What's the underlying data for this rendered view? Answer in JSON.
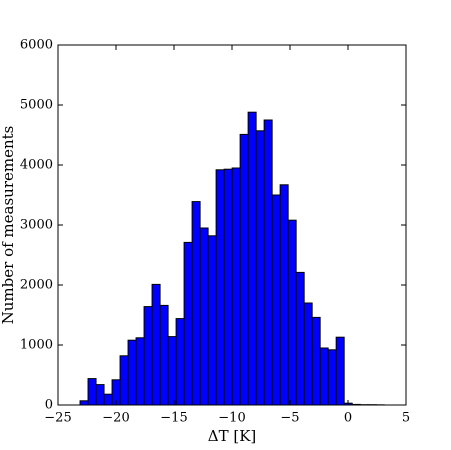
{
  "chart_data": {
    "type": "histogram",
    "xlabel": "ΔT [K]",
    "ylabel": "Number of measurements",
    "bins": [
      -23.1,
      -22.41,
      -21.72,
      -21.03,
      -20.34,
      -19.65,
      -18.96,
      -18.27,
      -17.58,
      -16.89,
      -16.2,
      -15.51,
      -14.82,
      -14.13,
      -13.44,
      -12.75,
      -12.06,
      -11.37,
      -10.68,
      -9.99,
      -9.3,
      -8.61,
      -7.92,
      -7.23,
      -6.54,
      -5.85,
      -5.16,
      -4.47,
      -3.78,
      -3.09,
      -2.4,
      -1.71,
      -1.02,
      -0.33,
      0.36,
      1.05,
      1.74,
      2.43,
      3.12
    ],
    "values": [
      70,
      440,
      340,
      180,
      420,
      820,
      1080,
      1120,
      1640,
      2010,
      1660,
      1140,
      1440,
      2710,
      3390,
      2950,
      2820,
      3920,
      3930,
      3950,
      4510,
      4880,
      4570,
      4750,
      3500,
      3670,
      3080,
      2210,
      1700,
      1460,
      950,
      920,
      1130,
      30,
      10,
      5,
      5,
      3
    ],
    "color": "#0000ff",
    "xlim": [
      -25,
      5
    ],
    "xticks": [
      {
        "value": -25,
        "label": "−25"
      },
      {
        "value": -20,
        "label": "−20"
      },
      {
        "value": -15,
        "label": "−15"
      },
      {
        "value": -10,
        "label": "−10"
      },
      {
        "value": -5,
        "label": "−5"
      },
      0,
      5
    ],
    "ylim": [
      0,
      6000
    ],
    "yticks": [
      0,
      1000,
      2000,
      3000,
      4000,
      5000,
      6000
    ]
  }
}
